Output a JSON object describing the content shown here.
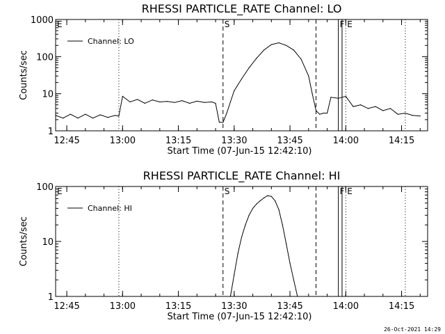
{
  "footer_timestamp": "26-Oct-2021 14:29",
  "colors": {
    "background": "#ffffff",
    "foreground": "#000000"
  },
  "chart_data": [
    {
      "type": "line",
      "title": "RHESSI PARTICLE_RATE Channel: LO",
      "xlabel": "Start Time (07-Jun-15 12:42:10)",
      "ylabel": "Counts/sec",
      "yscale": "log",
      "grid": false,
      "legend_position": "top-left",
      "xlim": [
        "12:42",
        "14:22"
      ],
      "ylim": [
        1,
        1000
      ],
      "x_ticks": [
        "12:45",
        "13:00",
        "13:15",
        "13:30",
        "13:45",
        "14:00",
        "14:15"
      ],
      "y_ticks": [
        "1",
        "10",
        "100",
        "1000"
      ],
      "series": [
        {
          "name": "Channel: LO",
          "x": [
            "12:42",
            "12:44",
            "12:46",
            "12:48",
            "12:50",
            "12:52",
            "12:54",
            "12:56",
            "12:58",
            "12:59",
            "13:00",
            "13:02",
            "13:04",
            "13:06",
            "13:08",
            "13:10",
            "13:12",
            "13:14",
            "13:16",
            "13:18",
            "13:20",
            "13:22",
            "13:24",
            "13:25",
            "13:26",
            "13:27",
            "13:28",
            "13:29",
            "13:30",
            "13:32",
            "13:34",
            "13:36",
            "13:38",
            "13:40",
            "13:42",
            "13:44",
            "13:46",
            "13:48",
            "13:50",
            "13:51",
            "13:52",
            "13:53",
            "13:54",
            "13:55",
            "13:56",
            "13:58",
            "14:00",
            "14:02",
            "14:04",
            "14:06",
            "14:08",
            "14:10",
            "14:12",
            "14:14",
            "14:16",
            "14:18",
            "14:20"
          ],
          "y": [
            2.6,
            2.2,
            2.8,
            2.2,
            2.8,
            2.2,
            2.7,
            2.3,
            2.6,
            2.5,
            8.5,
            6,
            7,
            5.5,
            6.8,
            6,
            6.2,
            5.8,
            6.5,
            5.5,
            6.3,
            5.8,
            6,
            5.5,
            1.7,
            1.7,
            3,
            6,
            12,
            25,
            50,
            90,
            150,
            210,
            235,
            200,
            150,
            85,
            30,
            10,
            3.5,
            2.8,
            3,
            3,
            8,
            7.5,
            8.5,
            4.5,
            5,
            4,
            4.5,
            3.5,
            4,
            2.8,
            3,
            2.6,
            2.5
          ]
        }
      ],
      "markers": [
        {
          "label": "E",
          "time": "12:42",
          "style": "dotted"
        },
        {
          "label": "",
          "time": "12:59",
          "style": "dotted"
        },
        {
          "label": "S",
          "time": "13:27",
          "style": "dashed"
        },
        {
          "label": "",
          "time": "13:52",
          "style": "dashed"
        },
        {
          "label": "F",
          "time": "13:58",
          "style": "solid"
        },
        {
          "label": "",
          "time": "13:59",
          "style": "solid"
        },
        {
          "label": "E",
          "time": "14:00",
          "style": "dotted"
        },
        {
          "label": "",
          "time": "14:16",
          "style": "dotted"
        }
      ]
    },
    {
      "type": "line",
      "title": "RHESSI PARTICLE_RATE Channel: HI",
      "xlabel": "Start Time (07-Jun-15 12:42:10)",
      "ylabel": "Counts/sec",
      "yscale": "log",
      "grid": false,
      "legend_position": "top-left",
      "xlim": [
        "12:42",
        "14:22"
      ],
      "ylim": [
        1,
        100
      ],
      "x_ticks": [
        "12:45",
        "13:00",
        "13:15",
        "13:30",
        "13:45",
        "14:00",
        "14:15"
      ],
      "y_ticks": [
        "1",
        "10",
        "100"
      ],
      "series": [
        {
          "name": "Channel: HI",
          "x": [
            "13:29",
            "13:30",
            "13:31",
            "13:32",
            "13:33",
            "13:34",
            "13:35",
            "13:36",
            "13:37",
            "13:38",
            "13:39",
            "13:40",
            "13:41",
            "13:42",
            "13:43",
            "13:44",
            "13:45",
            "13:46",
            "13:47"
          ],
          "y": [
            1,
            2.5,
            6,
            12,
            20,
            30,
            40,
            48,
            55,
            62,
            68,
            66,
            55,
            38,
            20,
            9,
            4,
            2,
            1
          ]
        }
      ],
      "markers": [
        {
          "label": "E",
          "time": "12:42",
          "style": "dotted"
        },
        {
          "label": "",
          "time": "12:59",
          "style": "dotted"
        },
        {
          "label": "S",
          "time": "13:27",
          "style": "dashed"
        },
        {
          "label": "",
          "time": "13:52",
          "style": "dashed"
        },
        {
          "label": "F",
          "time": "13:58",
          "style": "solid"
        },
        {
          "label": "",
          "time": "13:59",
          "style": "solid"
        },
        {
          "label": "E",
          "time": "14:00",
          "style": "dotted"
        },
        {
          "label": "",
          "time": "14:16",
          "style": "dotted"
        }
      ]
    }
  ]
}
